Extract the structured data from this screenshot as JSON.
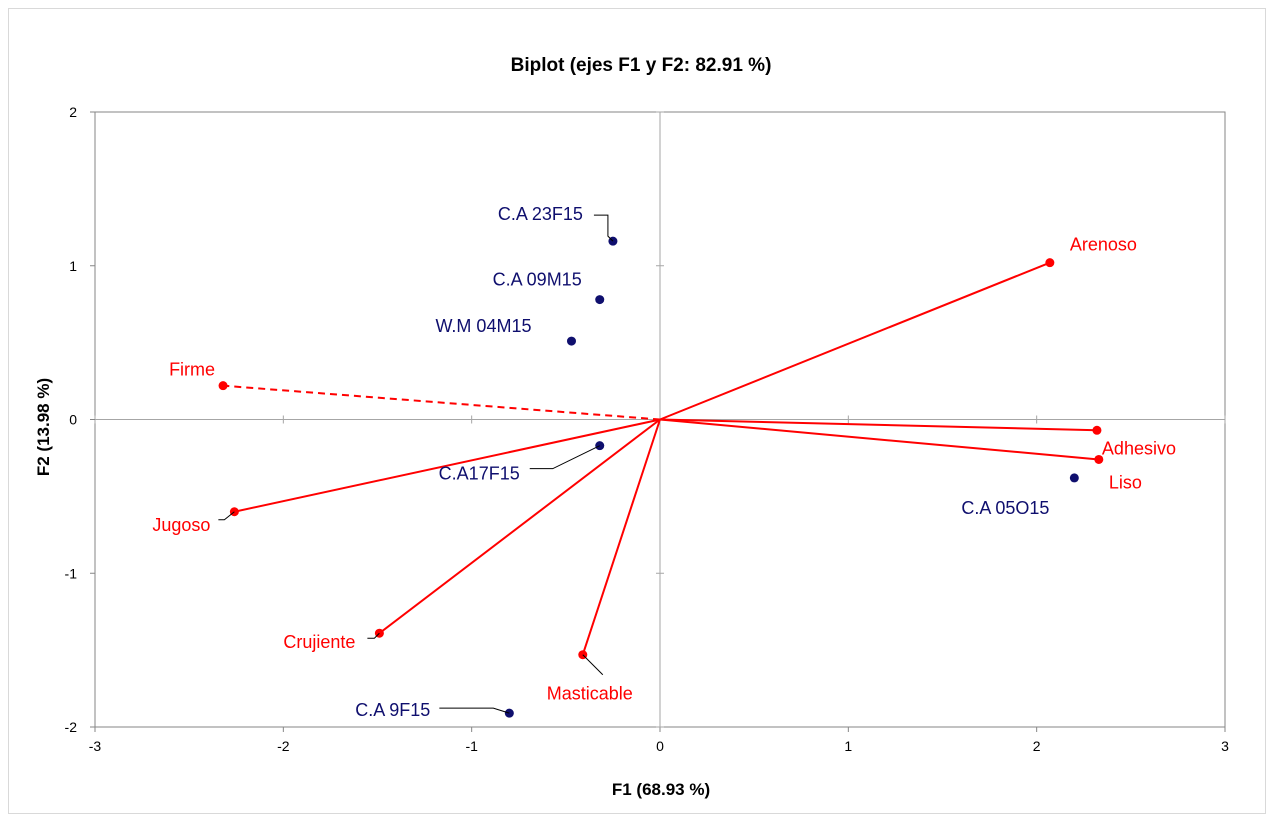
{
  "chart_data": {
    "type": "scatter",
    "title": "Biplot (ejes F1 y F2: 82.91 %)",
    "xlabel": "F1 (68.93 %)",
    "ylabel": "F2 (13.98 %)",
    "xlim": [
      -3,
      3
    ],
    "ylim": [
      -2,
      2
    ],
    "xticks": [
      "-3",
      "-2",
      "-1",
      "0",
      "1",
      "2",
      "3"
    ],
    "yticks": [
      "-2",
      "-1",
      "0",
      "1",
      "2"
    ],
    "grid": false,
    "colors": {
      "observations": "#0f0f6e",
      "variables": "#ff0000",
      "axes": "#a6a6a6",
      "frame": "#868686"
    },
    "observations": [
      {
        "label": "C.A 23F15",
        "x": -0.25,
        "y": 1.16
      },
      {
        "label": "C.A 09M15",
        "x": -0.32,
        "y": 0.78
      },
      {
        "label": "W.M  04M15",
        "x": -0.47,
        "y": 0.51
      },
      {
        "label": "C.A17F15",
        "x": -0.32,
        "y": -0.17
      },
      {
        "label": "C.A 05O15",
        "x": 2.2,
        "y": -0.38
      },
      {
        "label": "C.A 9F15",
        "x": -0.8,
        "y": -1.91
      }
    ],
    "variables": [
      {
        "label": "Arenoso",
        "x": 2.07,
        "y": 1.02,
        "dashed": false
      },
      {
        "label": "Adhesivo",
        "x": 2.32,
        "y": -0.07,
        "dashed": false
      },
      {
        "label": "Liso",
        "x": 2.33,
        "y": -0.26,
        "dashed": false
      },
      {
        "label": "Firme",
        "x": -2.32,
        "y": 0.22,
        "dashed": true
      },
      {
        "label": "Jugoso",
        "x": -2.26,
        "y": -0.6,
        "dashed": false
      },
      {
        "label": "Crujiente",
        "x": -1.49,
        "y": -1.39,
        "dashed": false
      },
      {
        "label": "Masticable",
        "x": -0.41,
        "y": -1.53,
        "dashed": false
      }
    ]
  }
}
